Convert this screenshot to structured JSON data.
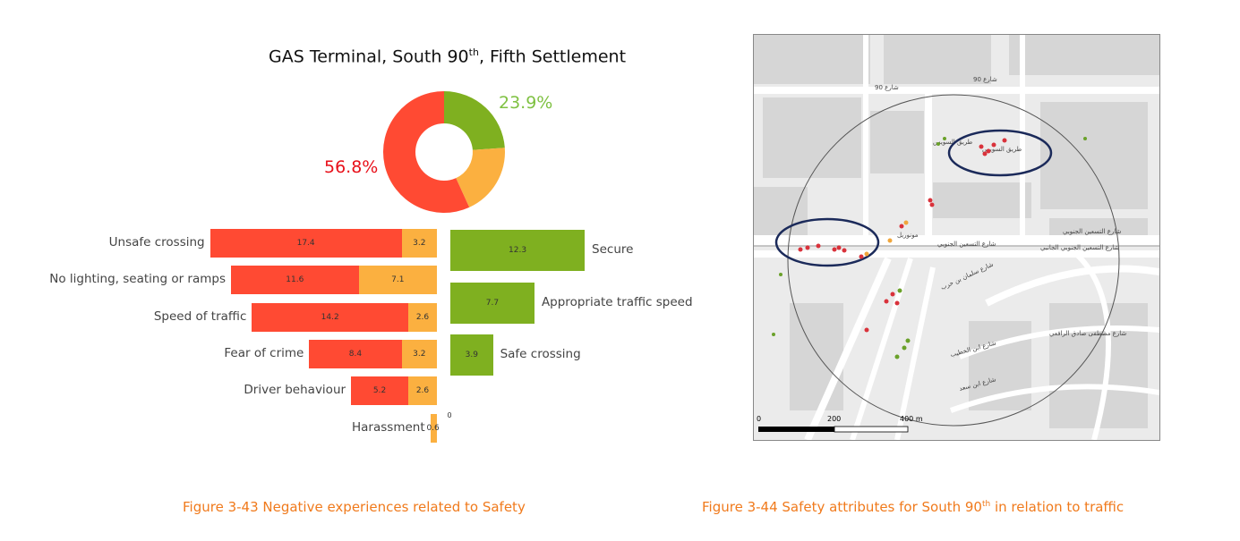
{
  "chart_data": {
    "type": "bar",
    "title": "GAS Terminal, South 90th, Fifth Settlement",
    "title_main": "GAS Terminal, South 90",
    "title_sup": "th",
    "title_tail": ", Fifth Settlement",
    "donut": {
      "red_pct": 56.8,
      "red_label": "56.8%",
      "green_pct": 23.9,
      "green_label": "23.9%",
      "orange_pct": 19.3
    },
    "negative": {
      "series": [
        {
          "name": "major",
          "color": "#ff4a33"
        },
        {
          "name": "minor",
          "color": "#fbb040"
        }
      ],
      "categories": [
        {
          "label": "Unsafe crossing",
          "red": 17.4,
          "orange": 3.2,
          "red_text": "17.4",
          "orange_text": "3.2"
        },
        {
          "label": "No lighting, seating or ramps",
          "red": 11.6,
          "orange": 7.1,
          "red_text": "11.6",
          "orange_text": "7.1"
        },
        {
          "label": "Speed of traffic",
          "red": 14.2,
          "orange": 2.6,
          "red_text": "14.2",
          "orange_text": "2.6"
        },
        {
          "label": "Fear of crime",
          "red": 8.4,
          "orange": 3.2,
          "red_text": "8.4",
          "orange_text": "3.2"
        },
        {
          "label": "Driver behaviour",
          "red": 5.2,
          "orange": 2.6,
          "red_text": "5.2",
          "orange_text": "2.6"
        },
        {
          "label": "Harassment",
          "red": 0,
          "orange": 0.6,
          "red_text": "0",
          "orange_text": "0.6"
        }
      ]
    },
    "positive": {
      "color": "#7fb020",
      "categories": [
        {
          "label": "Secure",
          "value": 12.3,
          "text": "12.3"
        },
        {
          "label": "Appropriate traffic speed",
          "value": 7.7,
          "text": "7.7"
        },
        {
          "label": "Safe crossing",
          "value": 3.9,
          "text": "3.9"
        }
      ]
    }
  },
  "map": {
    "road_labels": [
      "شارع 90",
      "شارع 90",
      "طريق السويس",
      "طريق السويس",
      "شارع التسعين الجنوبي",
      "شارع التسعين الجنوبي الجانبي",
      "شارع التسعين الجنوبي",
      "مونوريل",
      "شارع سلمان بن حرب",
      "شارع مصطفى صادق الرافعي",
      "شارع ابن الخطيب",
      "شارع ابن سعد"
    ],
    "scale": {
      "zero": "0",
      "mid": "200",
      "end": "400 m"
    }
  },
  "captions": {
    "left": "Figure 3-43 Negative experiences related to Safety",
    "right_main": "Figure 3-44 Safety attributes for South 90",
    "right_sup": "th",
    "right_tail": " in relation to traffic"
  },
  "colors": {
    "red": "#ff4a33",
    "orange": "#fbb040",
    "green": "#7fb020",
    "caption": "#f07a1c",
    "ellipse": "#1b2a5a"
  }
}
